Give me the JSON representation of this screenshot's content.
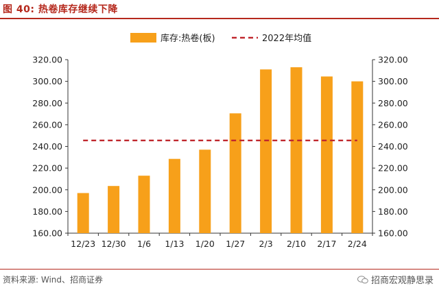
{
  "header": {
    "title": "图 40:  热卷库存继续下降"
  },
  "footer": {
    "source": "资料来源: Wind、招商证券",
    "watermark": "招商宏观静思录"
  },
  "colors": {
    "bar": "#F7A01A",
    "avg_line": "#C0272D",
    "accent": "#B5281C"
  },
  "chart_data": {
    "type": "bar",
    "categories": [
      "12/23",
      "12/30",
      "1/6",
      "1/13",
      "1/20",
      "1/27",
      "2/3",
      "2/10",
      "2/17",
      "2/24"
    ],
    "series": [
      {
        "name": "库存:热卷(板)",
        "type": "bar",
        "values": [
          197,
          203.5,
          213,
          228.5,
          237,
          270.5,
          311,
          313,
          304.5,
          300
        ]
      },
      {
        "name": "2022年均值",
        "type": "line-dashed",
        "values": [
          245.5,
          245.5,
          245.5,
          245.5,
          245.5,
          245.5,
          245.5,
          245.5,
          245.5,
          245.5
        ]
      }
    ],
    "ylim": [
      160,
      320
    ],
    "y_ticks": [
      "160.00",
      "180.00",
      "200.00",
      "220.00",
      "240.00",
      "260.00",
      "280.00",
      "300.00",
      "320.00"
    ],
    "y_tick_values": [
      160,
      180,
      200,
      220,
      240,
      260,
      280,
      300,
      320
    ],
    "secondary_axis": "right, same scale",
    "legend_position": "top-center",
    "grid": false
  }
}
